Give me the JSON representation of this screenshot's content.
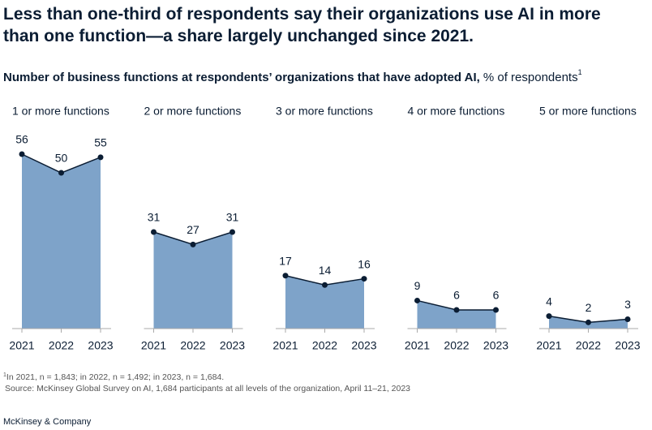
{
  "title": [
    "Less than one-third of respondents say their organizations use AI in more",
    "than one function—a share largely unchanged since 2021."
  ],
  "subtitle": "Number of business functions at respondents’ organizations that have adopted AI,",
  "subtitle_unit": "% of respondents",
  "subtitle_note": "1",
  "chart_data": [
    {
      "type": "area",
      "title": "1 or more functions",
      "categories": [
        "2021",
        "2022",
        "2023"
      ],
      "values": [
        56,
        50,
        55
      ],
      "color": "#7ea3c9",
      "line_color": "#0b1d33"
    },
    {
      "type": "area",
      "title": "2 or more functions",
      "categories": [
        "2021",
        "2022",
        "2023"
      ],
      "values": [
        31,
        27,
        31
      ],
      "color": "#7ea3c9",
      "line_color": "#0b1d33"
    },
    {
      "type": "area",
      "title": "3 or more functions",
      "categories": [
        "2021",
        "2022",
        "2023"
      ],
      "values": [
        17,
        14,
        16
      ],
      "color": "#7ea3c9",
      "line_color": "#0b1d33"
    },
    {
      "type": "area",
      "title": "4 or more functions",
      "categories": [
        "2021",
        "2022",
        "2023"
      ],
      "values": [
        9,
        6,
        6
      ],
      "color": "#7ea3c9",
      "line_color": "#0b1d33"
    },
    {
      "type": "area",
      "title": "5 or more functions",
      "categories": [
        "2021",
        "2022",
        "2023"
      ],
      "values": [
        4,
        2,
        3
      ],
      "color": "#7ea3c9",
      "line_color": "#0b1d33"
    }
  ],
  "footnote_marker": "1",
  "footnote": "In 2021, n = 1,843; in 2022, n = 1,492; in 2023, n = 1,684.",
  "source": "Source: McKinsey Global Survey on AI, 1,684 participants at all levels of the organization, April 11–21, 2023",
  "brand": "McKinsey & Company"
}
